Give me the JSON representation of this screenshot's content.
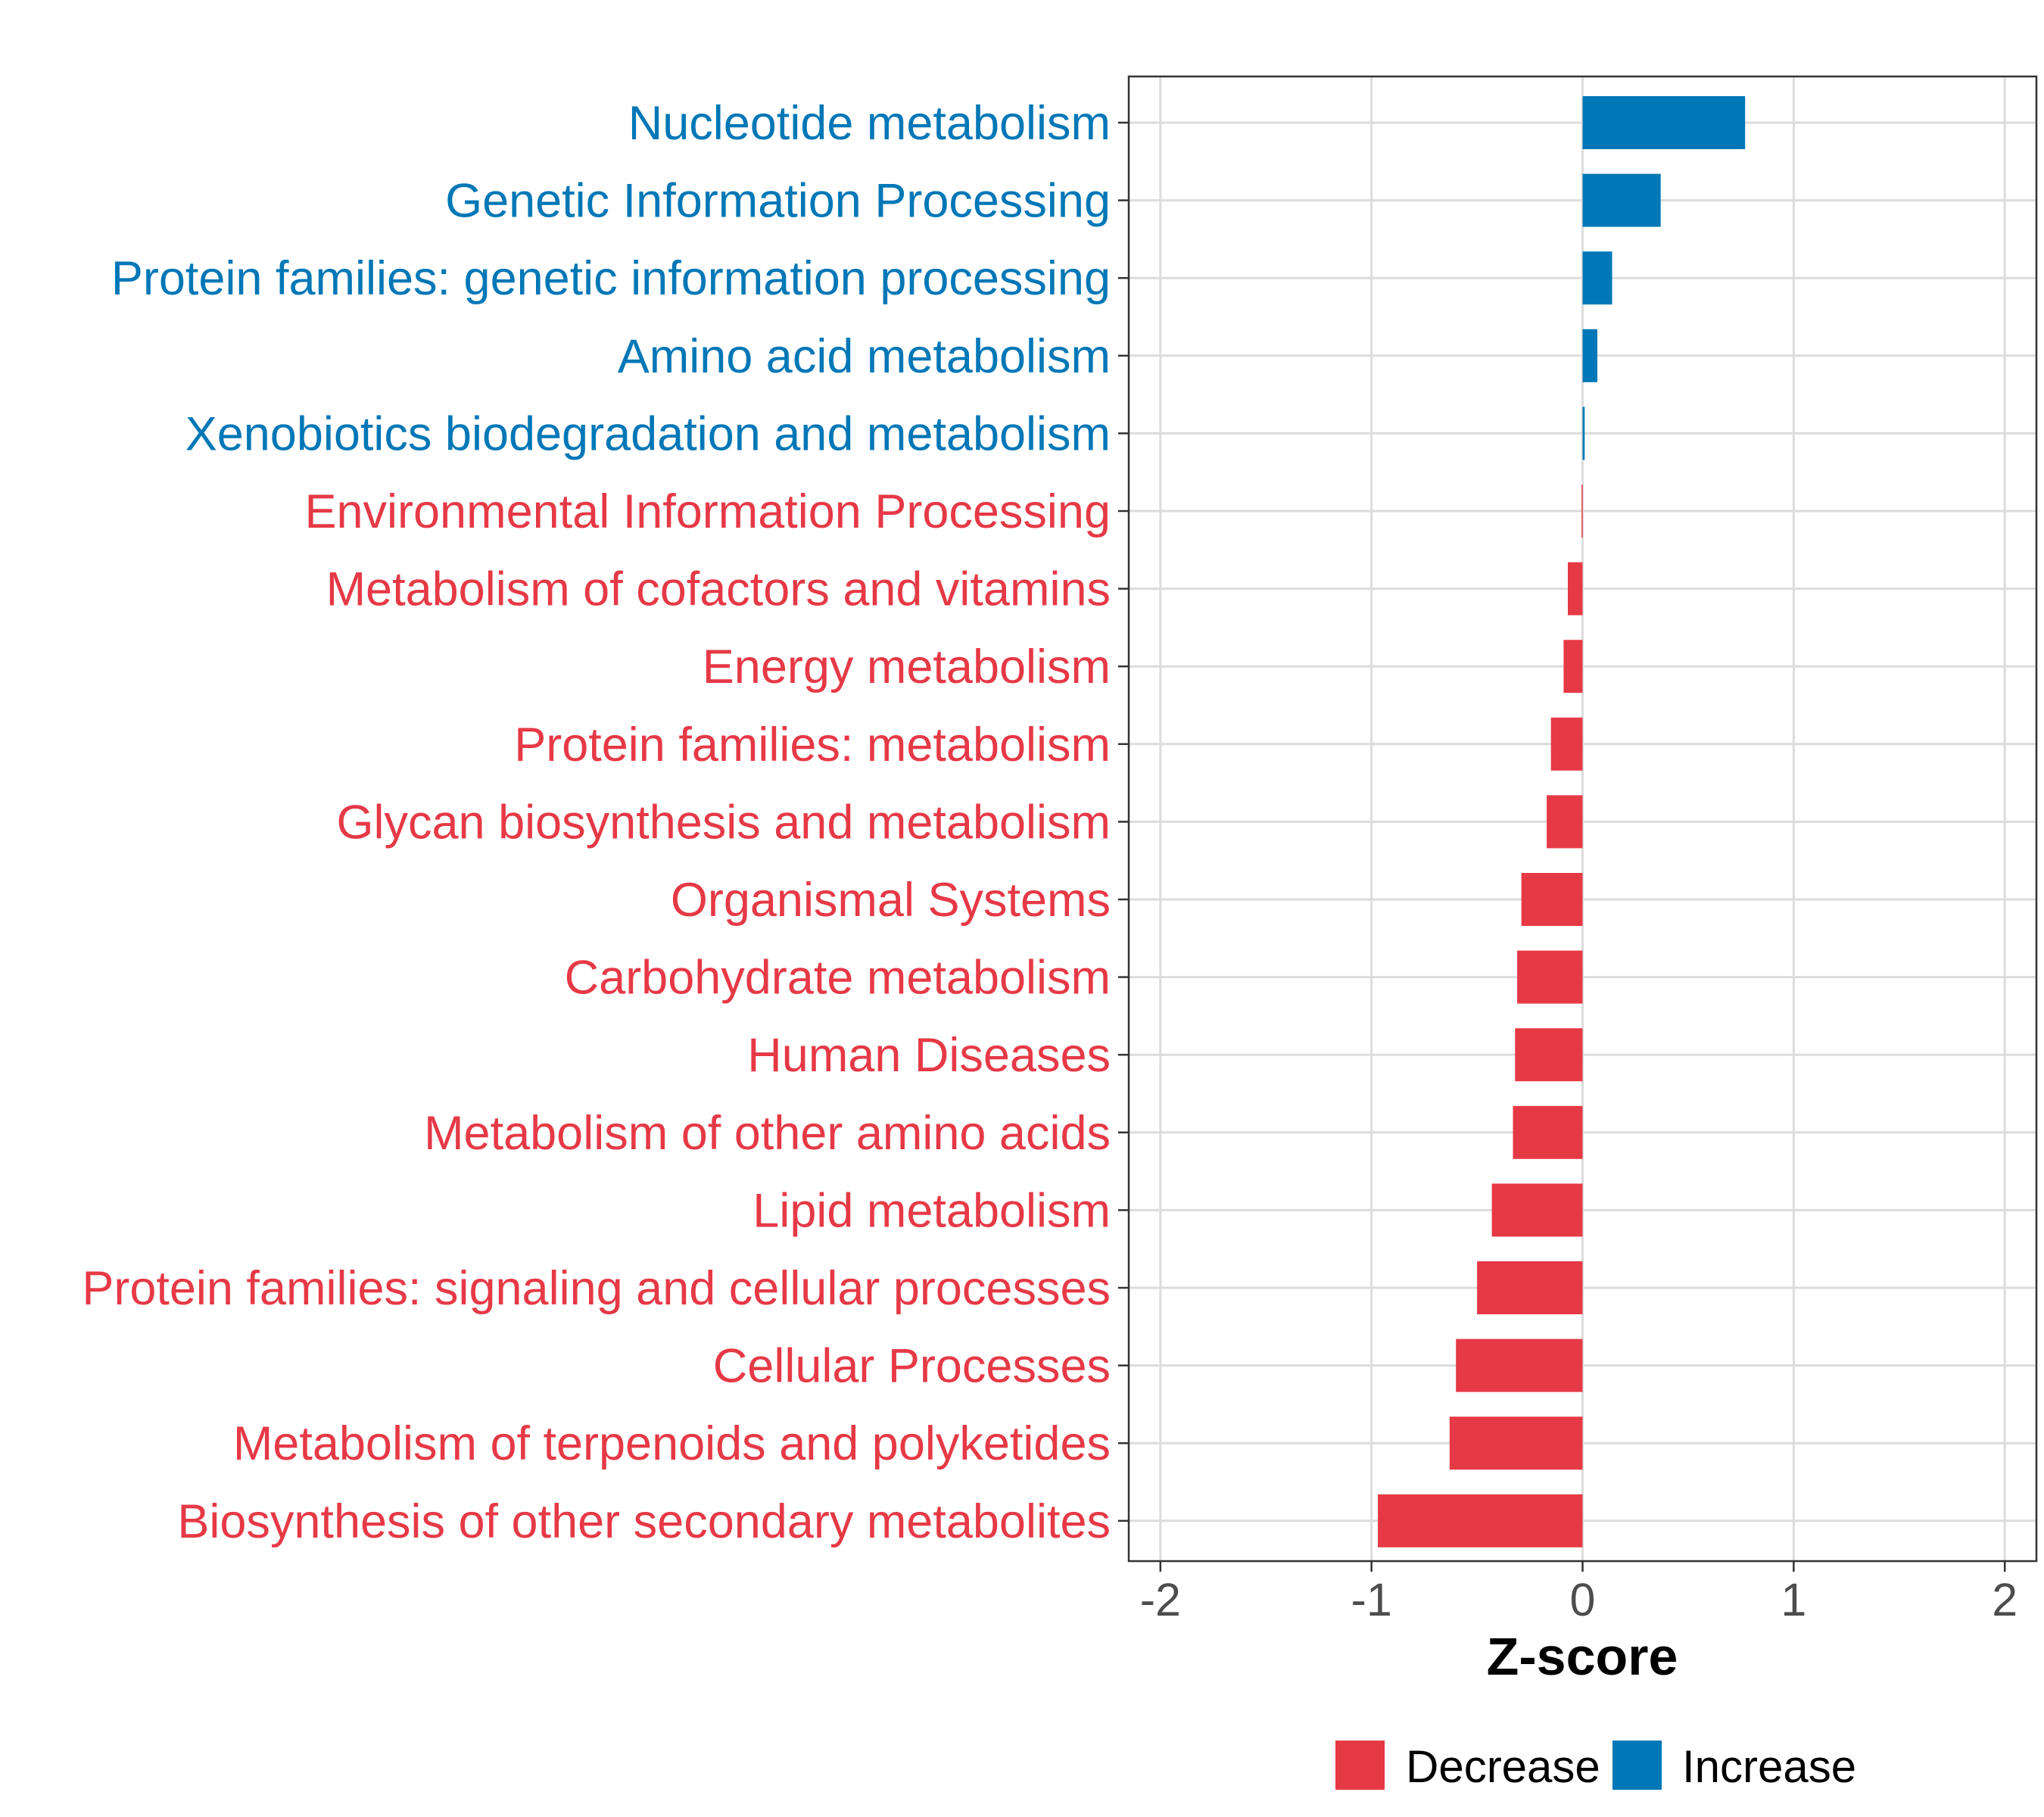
{
  "chart_data": {
    "type": "bar",
    "orientation": "horizontal",
    "xlabel": "Z-score",
    "ylabel": "",
    "xlim": [
      -2.15,
      2.15
    ],
    "xticks": [
      -2,
      -1,
      0,
      1,
      2
    ],
    "xtick_labels": [
      "-2",
      "-1",
      "0",
      "1",
      "2"
    ],
    "grid": true,
    "legend_position": "bottom",
    "categories": [
      "Nucleotide metabolism",
      "Genetic Information Processing",
      "Protein families: genetic information processing",
      "Amino acid metabolism",
      "Xenobiotics biodegradation and metabolism",
      "Environmental Information Processing",
      "Metabolism of cofactors and vitamins",
      "Energy metabolism",
      "Protein families: metabolism",
      "Glycan biosynthesis and metabolism",
      "Organismal Systems",
      "Carbohydrate metabolism",
      "Human Diseases",
      "Metabolism of other amino acids",
      "Lipid metabolism",
      "Protein families: signaling and cellular processes",
      "Cellular Processes",
      "Metabolism of terpenoids and polyketides",
      "Biosynthesis of other secondary metabolites"
    ],
    "values": [
      0.77,
      0.37,
      0.14,
      0.07,
      0.01,
      -0.005,
      -0.07,
      -0.09,
      -0.15,
      -0.17,
      -0.29,
      -0.31,
      -0.32,
      -0.33,
      -0.43,
      -0.5,
      -0.6,
      -0.63,
      -0.97
    ],
    "groups": [
      "Increase",
      "Increase",
      "Increase",
      "Increase",
      "Increase",
      "Decrease",
      "Decrease",
      "Decrease",
      "Decrease",
      "Decrease",
      "Decrease",
      "Decrease",
      "Decrease",
      "Decrease",
      "Decrease",
      "Decrease",
      "Decrease",
      "Decrease",
      "Decrease"
    ],
    "legend": [
      {
        "name": "Decrease",
        "color": "#e63946"
      },
      {
        "name": "Increase",
        "color": "#0077b6"
      }
    ]
  },
  "colors": {
    "decrease": "#e63946",
    "increase": "#0077b6",
    "grid": "#dcdcdc",
    "axis": "#333333"
  }
}
